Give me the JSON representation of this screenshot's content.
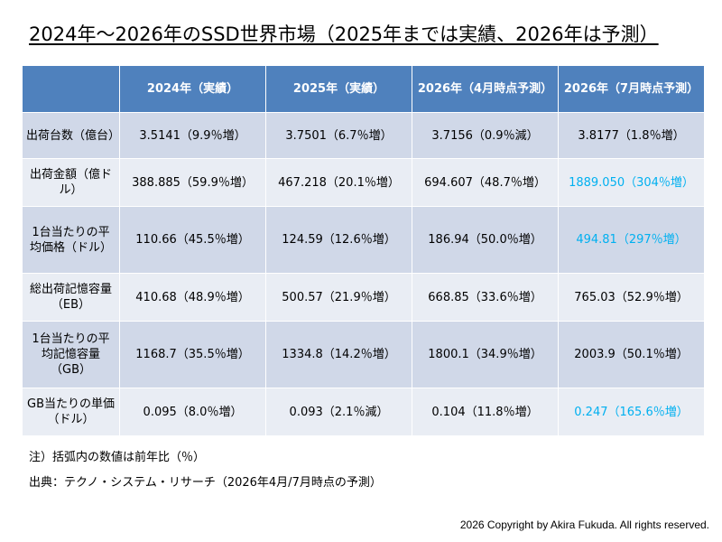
{
  "title": "2024年～2026年のSSD世界市場（2025年までは実績、2026年は予測）",
  "table": {
    "headers": [
      "",
      "2024年（実績）",
      "2025年（実績）",
      "2026年（4月時点予測）",
      "2026年（7月時点予測）"
    ],
    "rows": [
      {
        "label": "出荷台数（億台）",
        "cells": [
          "3.5141（9.9％増）",
          "3.7501（6.7％増）",
          "3.7156（0.9％減）",
          "3.8177（1.8％増）"
        ]
      },
      {
        "label": "出荷金額（億ドル）",
        "cells": [
          "388.885（59.9％増）",
          "467.218（20.1％増）",
          "694.607（48.7％増）",
          "1889.050（304％増）"
        ]
      },
      {
        "label": "1台当たりの平均価格（ドル）",
        "cells": [
          "110.66（45.5％増）",
          "124.59（12.6％増）",
          "186.94（50.0％増）",
          "494.81（297％増）"
        ]
      },
      {
        "label": "総出荷記憶容量（EB）",
        "cells": [
          "410.68（48.9％増）",
          "500.57（21.9％増）",
          "668.85（33.6％増）",
          "765.03（52.9％増）"
        ]
      },
      {
        "label": "1台当たりの平均記憶容量（GB）",
        "cells": [
          "1168.7（35.5％増）",
          "1334.8（14.2％増）",
          "1800.1（34.9％増）",
          "2003.9（50.1％増）"
        ]
      },
      {
        "label": "GB当たりの単価（ドル）",
        "cells": [
          "0.095（8.0％増）",
          "0.093（2.1％減）",
          "0.104（11.8％増）",
          "0.247（165.6％増）"
        ]
      }
    ]
  },
  "highlight_color": "#00b0f0",
  "header_color": "#4f81bd",
  "note": "注）括弧内の数値は前年比（％）",
  "source": "出典：テクノ・システム・リサーチ（2026年4月/7月時点の予測）",
  "copyright": "2026 Copyright by Akira Fukuda.  All rights reserved."
}
